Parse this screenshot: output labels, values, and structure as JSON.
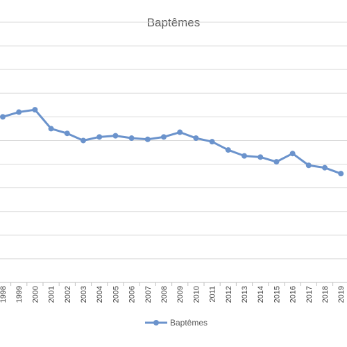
{
  "chart_data": {
    "type": "line",
    "title": "Baptêmes",
    "xlabel": "",
    "ylabel": "",
    "categories": [
      "1998",
      "1999",
      "2000",
      "2001",
      "2002",
      "2003",
      "2004",
      "2005",
      "2006",
      "2007",
      "2008",
      "2009",
      "2010",
      "2011",
      "2012",
      "2013",
      "2014",
      "2015",
      "2016",
      "2017",
      "2018",
      "2019"
    ],
    "series": [
      {
        "name": "Baptêmes",
        "color": "#6b93cc",
        "values": [
          7.0,
          7.2,
          7.3,
          6.5,
          6.3,
          6.0,
          6.15,
          6.2,
          6.1,
          6.05,
          6.15,
          6.35,
          6.1,
          5.95,
          5.6,
          5.35,
          5.3,
          5.1,
          5.45,
          4.95,
          4.85,
          4.6
        ]
      }
    ],
    "ylim": [
      0,
      11
    ],
    "grid": true,
    "legend": "bottom"
  }
}
